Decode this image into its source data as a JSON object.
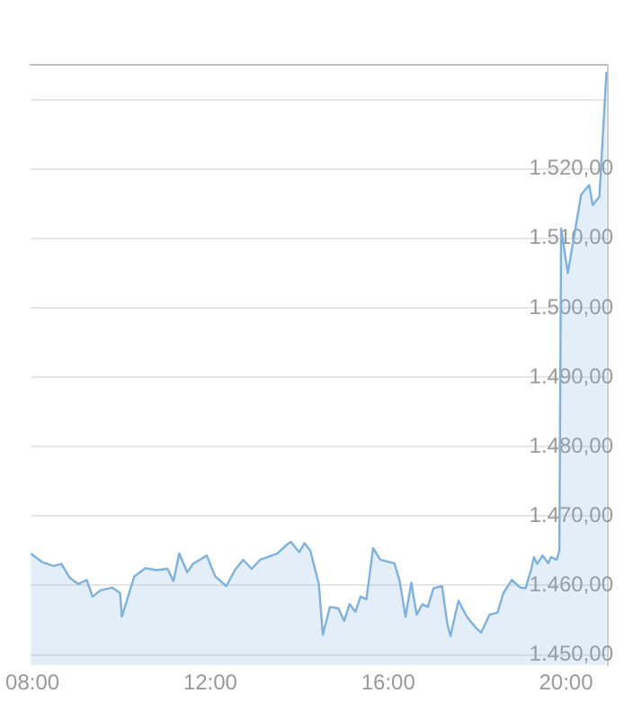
{
  "chart_data": {
    "type": "area",
    "x": [
      7.96,
      8.21,
      8.47,
      8.65,
      8.84,
      9.03,
      9.22,
      9.35,
      9.53,
      9.79,
      9.97,
      10.01,
      10.29,
      10.54,
      10.79,
      11.04,
      11.17,
      11.3,
      11.48,
      11.61,
      11.92,
      12.11,
      12.36,
      12.55,
      12.74,
      12.93,
      13.12,
      13.5,
      13.69,
      13.81,
      14.0,
      14.12,
      14.25,
      14.44,
      14.53,
      14.69,
      14.88,
      15.01,
      15.13,
      15.26,
      15.38,
      15.51,
      15.66,
      15.82,
      16.14,
      16.26,
      16.39,
      16.52,
      16.64,
      16.77,
      16.89,
      17.02,
      17.21,
      17.33,
      17.4,
      17.58,
      17.77,
      17.96,
      18.09,
      18.28,
      18.46,
      18.59,
      18.78,
      18.97,
      19.09,
      19.22,
      19.28,
      19.35,
      19.47,
      19.6,
      19.66,
      19.79,
      19.85,
      19.89,
      20.04,
      20.34,
      20.52,
      20.6,
      20.75,
      20.91
    ],
    "series": [
      {
        "color": "#7fb1de",
        "values": [
          1464.6,
          1463.4,
          1462.8,
          1463.1,
          1461.1,
          1460.2,
          1460.8,
          1458.4,
          1459.3,
          1459.7,
          1458.9,
          1455.5,
          1461.3,
          1462.5,
          1462.2,
          1462.4,
          1460.6,
          1464.6,
          1461.9,
          1463.1,
          1464.3,
          1461.3,
          1459.9,
          1462.2,
          1463.7,
          1462.4,
          1463.7,
          1464.6,
          1465.7,
          1466.3,
          1464.8,
          1466.1,
          1465.0,
          1460.2,
          1452.9,
          1456.9,
          1456.7,
          1454.9,
          1457.3,
          1456.2,
          1458.4,
          1458.0,
          1465.4,
          1463.7,
          1463.2,
          1460.6,
          1455.5,
          1460.4,
          1455.8,
          1457.3,
          1456.9,
          1459.6,
          1459.9,
          1454.5,
          1452.7,
          1457.8,
          1455.5,
          1454.0,
          1453.2,
          1455.8,
          1456.1,
          1458.9,
          1460.8,
          1459.7,
          1459.6,
          1462.4,
          1464.1,
          1463.1,
          1464.3,
          1463.2,
          1464.1,
          1463.7,
          1465.0,
          1511.4,
          1505.0,
          1516.3,
          1517.7,
          1514.8,
          1516.0,
          1534
        ]
      }
    ],
    "xlim": [
      7.96,
      20.94
    ],
    "xticks": [
      {
        "value": 8,
        "label": "08:00"
      },
      {
        "value": 12,
        "label": "12:00"
      },
      {
        "value": 16,
        "label": "16:00"
      },
      {
        "value": 20,
        "label": "20:00"
      }
    ],
    "ylim": [
      1448.5,
      1535
    ],
    "yticks": [
      {
        "value": 1450,
        "label": "1.450,00"
      },
      {
        "value": 1460,
        "label": "1.460,00"
      },
      {
        "value": 1470,
        "label": "1.470,00"
      },
      {
        "value": 1480,
        "label": "1.480,00"
      },
      {
        "value": 1490,
        "label": "1.490,00"
      },
      {
        "value": 1500,
        "label": "1.500,00"
      },
      {
        "value": 1510,
        "label": "1.510,00"
      },
      {
        "value": 1520,
        "label": "1.520,00"
      },
      {
        "value": 1530,
        "label": null
      }
    ],
    "grid": "y",
    "legend": false,
    "marker": "none"
  }
}
